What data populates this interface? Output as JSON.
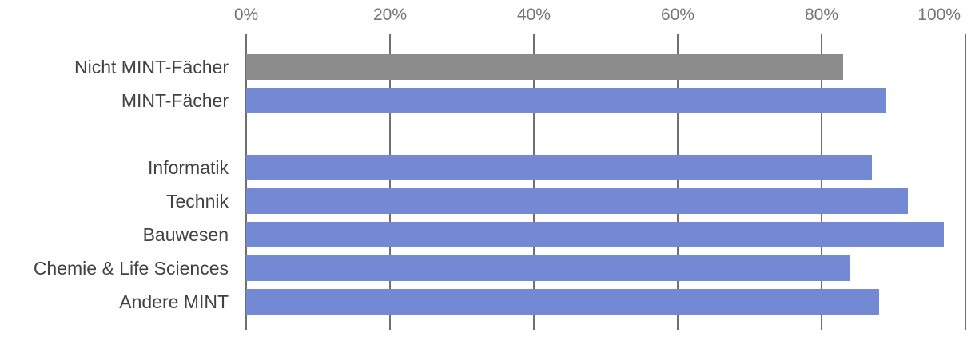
{
  "chart_data": {
    "type": "bar",
    "orientation": "horizontal",
    "title": "",
    "xlabel": "",
    "ylabel": "",
    "xlim": [
      0,
      100
    ],
    "x_ticks": [
      0,
      20,
      40,
      60,
      80,
      100
    ],
    "x_tick_labels": [
      "0%",
      "20%",
      "40%",
      "60%",
      "80%",
      "100%"
    ],
    "axis_position": "top",
    "grid": true,
    "legend": "none",
    "unit": "percent",
    "categories": [
      "Nicht MINT-Fächer",
      "MINT-Fächer",
      "",
      "Informatik",
      "Technik",
      "Bauwesen",
      "Chemie & Life Sciences",
      "Andere MINT"
    ],
    "values": [
      83,
      89,
      null,
      87,
      92,
      97,
      84,
      88
    ],
    "bar_colors": [
      "#8C8C8C",
      "#7489D3",
      null,
      "#7489D3",
      "#7489D3",
      "#7489D3",
      "#7489D3",
      "#7489D3"
    ]
  },
  "colors": {
    "bar_blue": "#7489D3",
    "bar_gray": "#8C8C8C",
    "gridline": "#707070",
    "axis_label_text": "#757575",
    "category_label_text": "#424242",
    "background": "#FFFFFF"
  }
}
